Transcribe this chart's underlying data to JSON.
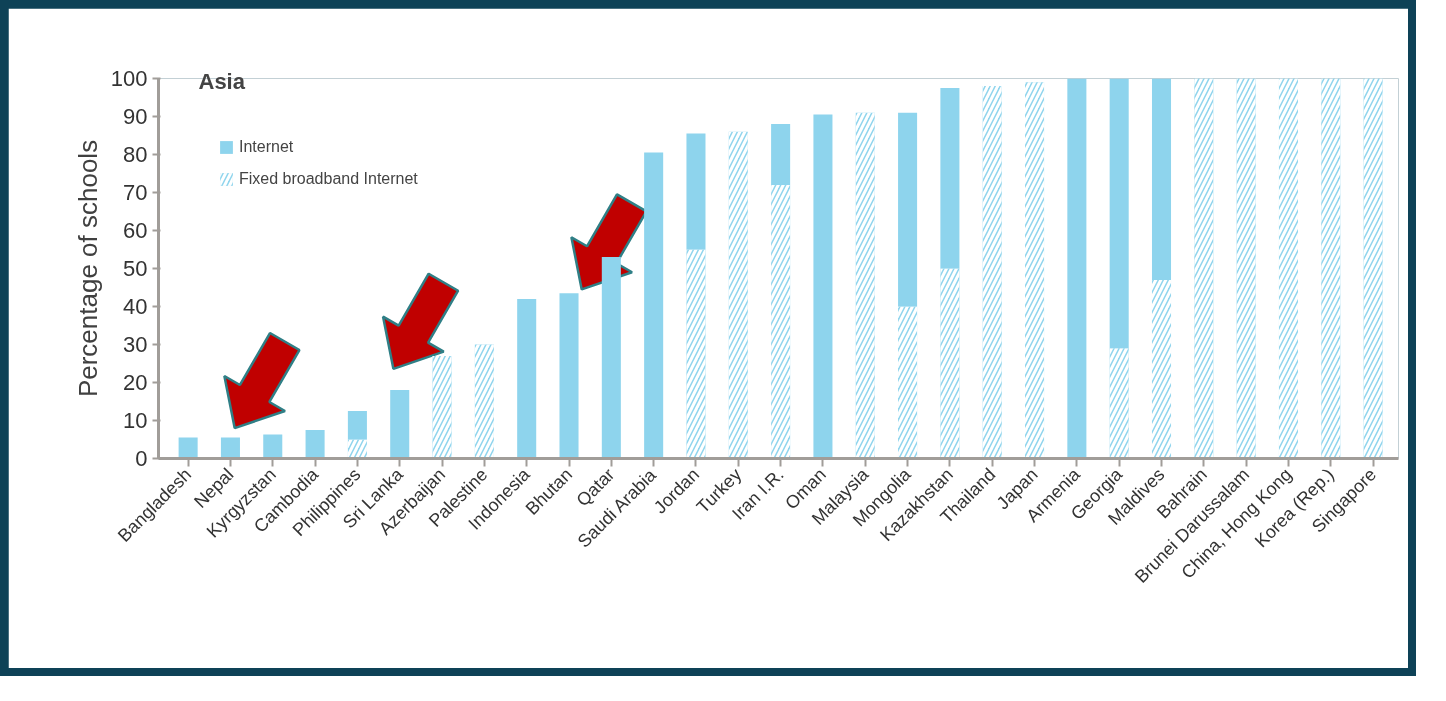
{
  "chart_data": {
    "type": "bar",
    "title": "Asia",
    "ylabel": "Percentage of schools",
    "stacked": true,
    "categories": [
      "Bangladesh",
      "Nepal",
      "Kyrgyzstan",
      "Cambodia",
      "Philippines",
      "Sri Lanka",
      "Azerbaijan",
      "Palestine",
      "Indonesia",
      "Bhutan",
      "Qatar",
      "Saudi Arabia",
      "Jordan",
      "Turkey",
      "Iran I.R.",
      "Oman",
      "Malaysia",
      "Mongolia",
      "Kazakhstan",
      "Thailand",
      "Japan",
      "Armenia",
      "Georgia",
      "Maldives",
      "Bahrain",
      "Brunei Darussalam",
      "China, Hong Kong",
      "Korea (Rep.)",
      "Singapore"
    ],
    "series": [
      {
        "name": "Fixed broadband Internet",
        "color": "#8ed4ed",
        "values": [
          0,
          0,
          0,
          0,
          5,
          0,
          27,
          30,
          0,
          0,
          0,
          0,
          55,
          86,
          72,
          0,
          91,
          40,
          50,
          98,
          99,
          0,
          29,
          47,
          100,
          100,
          100,
          100,
          100
        ]
      },
      {
        "name": "Internet",
        "color": "#8ed4ed",
        "values": [
          5.5,
          5.5,
          6.3,
          7.5,
          7.5,
          18,
          0,
          0,
          42,
          43.5,
          53,
          80.5,
          30.5,
          0,
          16,
          90.5,
          0,
          51,
          47.5,
          0,
          0,
          100,
          71,
          53,
          0,
          0,
          0,
          0,
          0
        ]
      }
    ],
    "ylim": [
      0,
      100
    ],
    "yticks": [
      0,
      10,
      20,
      30,
      40,
      50,
      60,
      70,
      80,
      90,
      100
    ],
    "grid": false,
    "legend": "top left"
  }
}
